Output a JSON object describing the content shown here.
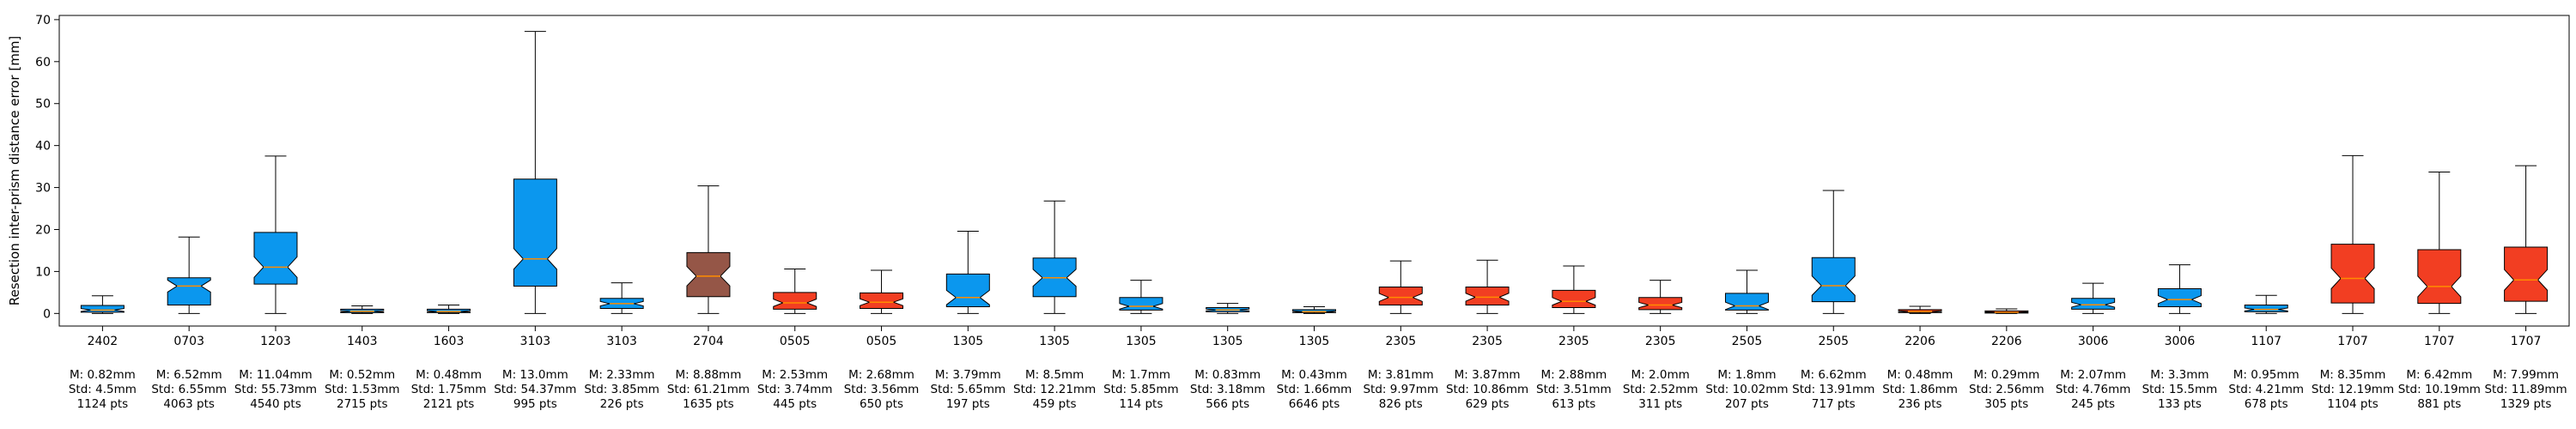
{
  "chart_data": {
    "type": "boxplot",
    "ylabel": "Resection inter-prism distance error [mm]",
    "ylim": [
      -3,
      71
    ],
    "yticks": [
      0,
      10,
      20,
      30,
      40,
      50,
      60,
      70
    ],
    "colors": {
      "blue": "#0b97ee",
      "red": "#f23e22",
      "brown": "#955647",
      "median": "#ff8c00"
    },
    "boxes": [
      {
        "label": "2402",
        "color": "blue",
        "whislo": 0.0,
        "q1": 0.3,
        "med": 0.82,
        "q3": 1.9,
        "whishi": 4.2,
        "stats": [
          "M: 0.82mm",
          "Std: 4.5mm",
          "1124 pts"
        ]
      },
      {
        "label": "0703",
        "color": "blue",
        "whislo": 0.0,
        "q1": 2.0,
        "med": 6.52,
        "q3": 8.5,
        "whishi": 18.2,
        "stats": [
          "M: 6.52mm",
          "Std: 6.55mm",
          "4063 pts"
        ]
      },
      {
        "label": "1203",
        "color": "blue",
        "whislo": 0.0,
        "q1": 7.0,
        "med": 11.04,
        "q3": 19.3,
        "whishi": 37.5,
        "stats": [
          "M: 11.04mm",
          "Std: 55.73mm",
          "4540 pts"
        ]
      },
      {
        "label": "1403",
        "color": "blue",
        "whislo": 0.0,
        "q1": 0.2,
        "med": 0.52,
        "q3": 1.0,
        "whishi": 1.8,
        "stats": [
          "M: 0.52mm",
          "Std: 1.53mm",
          "2715 pts"
        ]
      },
      {
        "label": "1603",
        "color": "blue",
        "whislo": 0.0,
        "q1": 0.2,
        "med": 0.48,
        "q3": 1.0,
        "whishi": 2.0,
        "stats": [
          "M: 0.48mm",
          "Std: 1.75mm",
          "2121 pts"
        ]
      },
      {
        "label": "3103",
        "color": "blue",
        "whislo": 0.0,
        "q1": 6.5,
        "med": 13.0,
        "q3": 32.0,
        "whishi": 67.2,
        "stats": [
          "M: 13.0mm",
          "Std: 54.37mm",
          "995 pts"
        ]
      },
      {
        "label": "3103",
        "color": "blue",
        "whislo": 0.0,
        "q1": 1.2,
        "med": 2.33,
        "q3": 3.6,
        "whishi": 7.3,
        "stats": [
          "M: 2.33mm",
          "Std: 3.85mm",
          "226 pts"
        ]
      },
      {
        "label": "2704",
        "color": "brown",
        "whislo": 0.0,
        "q1": 4.0,
        "med": 8.88,
        "q3": 14.5,
        "whishi": 30.4,
        "stats": [
          "M: 8.88mm",
          "Std: 61.21mm",
          "1635 pts"
        ]
      },
      {
        "label": "0505",
        "color": "red",
        "whislo": 0.0,
        "q1": 1.0,
        "med": 2.53,
        "q3": 5.0,
        "whishi": 10.6,
        "stats": [
          "M: 2.53mm",
          "Std: 3.74mm",
          "445 pts"
        ]
      },
      {
        "label": "0505",
        "color": "red",
        "whislo": 0.0,
        "q1": 1.2,
        "med": 2.68,
        "q3": 4.9,
        "whishi": 10.3,
        "stats": [
          "M: 2.68mm",
          "Std: 3.56mm",
          "650 pts"
        ]
      },
      {
        "label": "1305",
        "color": "blue",
        "whislo": 0.0,
        "q1": 1.6,
        "med": 3.79,
        "q3": 9.4,
        "whishi": 19.6,
        "stats": [
          "M: 3.79mm",
          "Std: 5.65mm",
          "197 pts"
        ]
      },
      {
        "label": "1305",
        "color": "blue",
        "whislo": 0.0,
        "q1": 4.0,
        "med": 8.5,
        "q3": 13.2,
        "whishi": 26.8,
        "stats": [
          "M: 8.5mm",
          "Std: 12.21mm",
          "459 pts"
        ]
      },
      {
        "label": "1305",
        "color": "blue",
        "whislo": 0.0,
        "q1": 0.8,
        "med": 1.7,
        "q3": 3.8,
        "whishi": 7.9,
        "stats": [
          "M: 1.7mm",
          "Std: 5.85mm",
          "114 pts"
        ]
      },
      {
        "label": "1305",
        "color": "blue",
        "whislo": 0.0,
        "q1": 0.4,
        "med": 0.83,
        "q3": 1.4,
        "whishi": 2.4,
        "stats": [
          "M: 0.83mm",
          "Std: 3.18mm",
          "566 pts"
        ]
      },
      {
        "label": "1305",
        "color": "blue",
        "whislo": 0.0,
        "q1": 0.2,
        "med": 0.43,
        "q3": 0.9,
        "whishi": 1.6,
        "stats": [
          "M: 0.43mm",
          "Std: 1.66mm",
          "6646 pts"
        ]
      },
      {
        "label": "2305",
        "color": "red",
        "whislo": 0.0,
        "q1": 2.0,
        "med": 3.81,
        "q3": 6.3,
        "whishi": 12.5,
        "stats": [
          "M: 3.81mm",
          "Std: 9.97mm",
          "826 pts"
        ]
      },
      {
        "label": "2305",
        "color": "red",
        "whislo": 0.0,
        "q1": 2.0,
        "med": 3.87,
        "q3": 6.3,
        "whishi": 12.7,
        "stats": [
          "M: 3.87mm",
          "Std: 10.86mm",
          "629 pts"
        ]
      },
      {
        "label": "2305",
        "color": "red",
        "whislo": 0.0,
        "q1": 1.4,
        "med": 2.88,
        "q3": 5.5,
        "whishi": 11.3,
        "stats": [
          "M: 2.88mm",
          "Std: 3.51mm",
          "613 pts"
        ]
      },
      {
        "label": "2305",
        "color": "red",
        "whislo": 0.0,
        "q1": 0.9,
        "med": 2.0,
        "q3": 3.8,
        "whishi": 7.9,
        "stats": [
          "M: 2.0mm",
          "Std: 2.52mm",
          "311 pts"
        ]
      },
      {
        "label": "2505",
        "color": "blue",
        "whislo": 0.0,
        "q1": 0.8,
        "med": 1.8,
        "q3": 4.8,
        "whishi": 10.3,
        "stats": [
          "M: 1.8mm",
          "Std: 10.02mm",
          "207 pts"
        ]
      },
      {
        "label": "2505",
        "color": "blue",
        "whislo": 0.0,
        "q1": 2.8,
        "med": 6.62,
        "q3": 13.3,
        "whishi": 29.3,
        "stats": [
          "M: 6.62mm",
          "Std: 13.91mm",
          "717 pts"
        ]
      },
      {
        "label": "2206",
        "color": "red",
        "whislo": 0.0,
        "q1": 0.2,
        "med": 0.48,
        "q3": 0.9,
        "whishi": 1.7,
        "stats": [
          "M: 0.48mm",
          "Std: 1.86mm",
          "236 pts"
        ]
      },
      {
        "label": "2206",
        "color": "red",
        "whislo": 0.0,
        "q1": 0.1,
        "med": 0.29,
        "q3": 0.6,
        "whishi": 1.1,
        "stats": [
          "M: 0.29mm",
          "Std: 2.56mm",
          "305 pts"
        ]
      },
      {
        "label": "3006",
        "color": "blue",
        "whislo": 0.0,
        "q1": 1.0,
        "med": 2.07,
        "q3": 3.6,
        "whishi": 7.2,
        "stats": [
          "M: 2.07mm",
          "Std: 4.76mm",
          "245 pts"
        ]
      },
      {
        "label": "3006",
        "color": "blue",
        "whislo": 0.0,
        "q1": 1.6,
        "med": 3.3,
        "q3": 5.9,
        "whishi": 11.6,
        "stats": [
          "M: 3.3mm",
          "Std: 15.5mm",
          "133 pts"
        ]
      },
      {
        "label": "1107",
        "color": "blue",
        "whislo": 0.0,
        "q1": 0.4,
        "med": 0.95,
        "q3": 2.0,
        "whishi": 4.3,
        "stats": [
          "M: 0.95mm",
          "Std: 4.21mm",
          "678 pts"
        ]
      },
      {
        "label": "1707",
        "color": "red",
        "whislo": 0.0,
        "q1": 2.5,
        "med": 8.35,
        "q3": 16.5,
        "whishi": 37.6,
        "stats": [
          "M: 8.35mm",
          "Std: 12.19mm",
          "1104 pts"
        ]
      },
      {
        "label": "1707",
        "color": "red",
        "whislo": 0.0,
        "q1": 2.4,
        "med": 6.42,
        "q3": 15.2,
        "whishi": 33.7,
        "stats": [
          "M: 6.42mm",
          "Std: 10.19mm",
          "881 pts"
        ]
      },
      {
        "label": "1707",
        "color": "red",
        "whislo": 0.0,
        "q1": 2.9,
        "med": 7.99,
        "q3": 15.8,
        "whishi": 35.2,
        "stats": [
          "M: 7.99mm",
          "Std: 11.89mm",
          "1329 pts"
        ]
      }
    ]
  }
}
